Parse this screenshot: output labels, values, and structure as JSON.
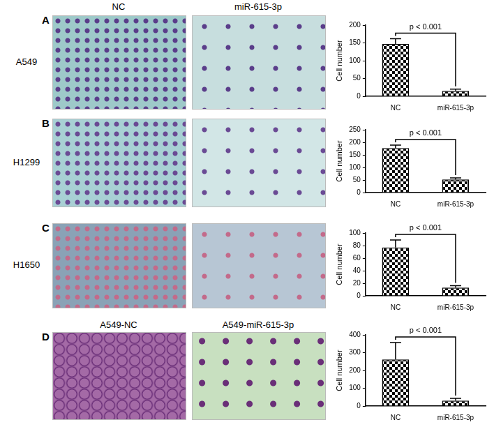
{
  "column_headers": [
    "NC",
    "miR-615-3p"
  ],
  "panels": [
    {
      "letter": "A",
      "row_label": "A549"
    },
    {
      "letter": "B",
      "row_label": "H1299"
    },
    {
      "letter": "C",
      "row_label": "H1650"
    },
    {
      "letter": "D",
      "image_labels": [
        "A549-NC",
        "A549-miR-615-3p"
      ]
    }
  ],
  "chart_data": [
    {
      "type": "bar",
      "categories": [
        "NC",
        "miR-615-3p"
      ],
      "values": [
        147,
        15
      ],
      "errors": [
        15,
        5
      ],
      "y_label": "Cell number",
      "ylim": [
        0,
        200
      ],
      "yticks": [
        0,
        50,
        100,
        150,
        200
      ],
      "color": "#000000",
      "grid": false,
      "annotations": [
        "p < 0.001"
      ]
    },
    {
      "type": "bar",
      "categories": [
        "NC",
        "miR-615-3p"
      ],
      "values": [
        177,
        52
      ],
      "errors": [
        12,
        6
      ],
      "y_label": "Cell number",
      "ylim": [
        0,
        250
      ],
      "yticks": [
        0,
        50,
        100,
        150,
        200,
        250
      ],
      "color": "#000000",
      "grid": false,
      "annotations": [
        "p < 0.001"
      ]
    },
    {
      "type": "bar",
      "categories": [
        "NC",
        "miR-615-3p"
      ],
      "values": [
        77,
        13
      ],
      "errors": [
        12,
        3
      ],
      "y_label": "Cell number",
      "ylim": [
        0,
        100
      ],
      "yticks": [
        0,
        20,
        40,
        60,
        80,
        100
      ],
      "color": "#000000",
      "grid": false,
      "annotations": [
        "p < 0.001"
      ]
    },
    {
      "type": "bar",
      "categories": [
        "NC",
        "miR-615-3p"
      ],
      "values": [
        262,
        30
      ],
      "errors": [
        95,
        13
      ],
      "y_label": "Cell number",
      "ylim": [
        0,
        400
      ],
      "yticks": [
        0,
        100,
        200,
        300,
        400
      ],
      "color": "#000000",
      "grid": false,
      "annotations": [
        "p < 0.001"
      ]
    }
  ]
}
